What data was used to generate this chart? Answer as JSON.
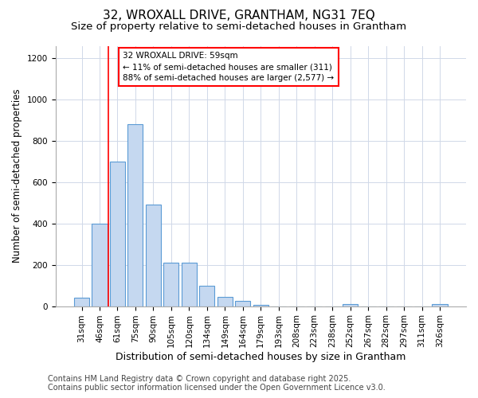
{
  "title": "32, WROXALL DRIVE, GRANTHAM, NG31 7EQ",
  "subtitle": "Size of property relative to semi-detached houses in Grantham",
  "xlabel": "Distribution of semi-detached houses by size in Grantham",
  "ylabel": "Number of semi-detached properties",
  "categories": [
    "31sqm",
    "46sqm",
    "61sqm",
    "75sqm",
    "90sqm",
    "105sqm",
    "120sqm",
    "134sqm",
    "149sqm",
    "164sqm",
    "179sqm",
    "193sqm",
    "208sqm",
    "223sqm",
    "238sqm",
    "252sqm",
    "267sqm",
    "282sqm",
    "297sqm",
    "311sqm",
    "326sqm"
  ],
  "values": [
    40,
    400,
    700,
    880,
    490,
    210,
    210,
    100,
    45,
    25,
    5,
    0,
    0,
    0,
    0,
    10,
    0,
    0,
    0,
    0,
    10
  ],
  "bar_color": "#c5d8f0",
  "bar_edge_color": "#5b9bd5",
  "vline_index": 2,
  "vline_color": "red",
  "annotation_title": "32 WROXALL DRIVE: 59sqm",
  "annotation_line1": "← 11% of semi-detached houses are smaller (311)",
  "annotation_line2": "88% of semi-detached houses are larger (2,577) →",
  "annotation_box_color": "white",
  "annotation_box_edge_color": "red",
  "ylim": [
    0,
    1260
  ],
  "yticks": [
    0,
    200,
    400,
    600,
    800,
    1000,
    1200
  ],
  "footer1": "Contains HM Land Registry data © Crown copyright and database right 2025.",
  "footer2": "Contains public sector information licensed under the Open Government Licence v3.0.",
  "bg_color": "#ffffff",
  "plot_bg_color": "#ffffff",
  "grid_color": "#d0d8e8",
  "title_fontsize": 11,
  "subtitle_fontsize": 9.5,
  "xlabel_fontsize": 9,
  "ylabel_fontsize": 8.5,
  "tick_fontsize": 7.5,
  "annotation_fontsize": 7.5,
  "footer_fontsize": 7
}
